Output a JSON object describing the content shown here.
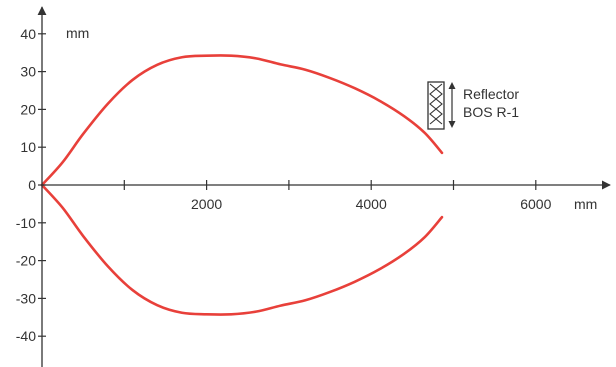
{
  "chart_data": {
    "type": "line",
    "title": "",
    "xlabel": "mm",
    "ylabel": "mm",
    "xlim": [
      0,
      6800
    ],
    "ylim": [
      -45,
      42
    ],
    "x_ticks": [
      {
        "value": 1000,
        "label": ""
      },
      {
        "value": 2000,
        "label": "2000"
      },
      {
        "value": 3000,
        "label": ""
      },
      {
        "value": 4000,
        "label": "4000"
      },
      {
        "value": 5000,
        "label": ""
      },
      {
        "value": 6000,
        "label": "6000"
      }
    ],
    "y_ticks": [
      {
        "value": 40,
        "label": "40"
      },
      {
        "value": 30,
        "label": "30"
      },
      {
        "value": 20,
        "label": "20"
      },
      {
        "value": 10,
        "label": "10"
      },
      {
        "value": 0,
        "label": "0"
      },
      {
        "value": -10,
        "label": "-10"
      },
      {
        "value": -20,
        "label": "-20"
      },
      {
        "value": -30,
        "label": "-30"
      },
      {
        "value": -40,
        "label": "-40"
      }
    ],
    "grid": false,
    "series": [
      {
        "color": "#e8403a",
        "x": [
          0,
          250,
          500,
          800,
          1100,
          1400,
          1700,
          2000,
          2300,
          2600,
          2900,
          3200,
          3500,
          3800,
          4100,
          4400,
          4650,
          4860
        ],
        "y": [
          0,
          6,
          13.5,
          21.5,
          27.8,
          31.8,
          33.8,
          34.2,
          34.2,
          33.5,
          31.9,
          30.5,
          28.3,
          25.6,
          22.3,
          18.2,
          13.8,
          8.5
        ]
      },
      {
        "color": "#e8403a",
        "x": [
          0,
          250,
          500,
          800,
          1100,
          1400,
          1700,
          2000,
          2300,
          2600,
          2900,
          3200,
          3500,
          3800,
          4100,
          4400,
          4650,
          4860
        ],
        "y": [
          0,
          -6,
          -13.5,
          -21.5,
          -27.8,
          -31.8,
          -33.8,
          -34.2,
          -34.2,
          -33.5,
          -31.9,
          -30.5,
          -28.3,
          -25.6,
          -22.3,
          -18.2,
          -13.8,
          -8.5
        ]
      }
    ],
    "annotation": {
      "lines": [
        "Reflector",
        "BOS R-1"
      ],
      "at": {
        "x": 4850,
        "y": 21
      }
    },
    "colors": {
      "curve": "#e8403a",
      "axis": "#333333"
    },
    "icons": [
      "reflector-icon",
      "double-arrow-icon"
    ]
  }
}
